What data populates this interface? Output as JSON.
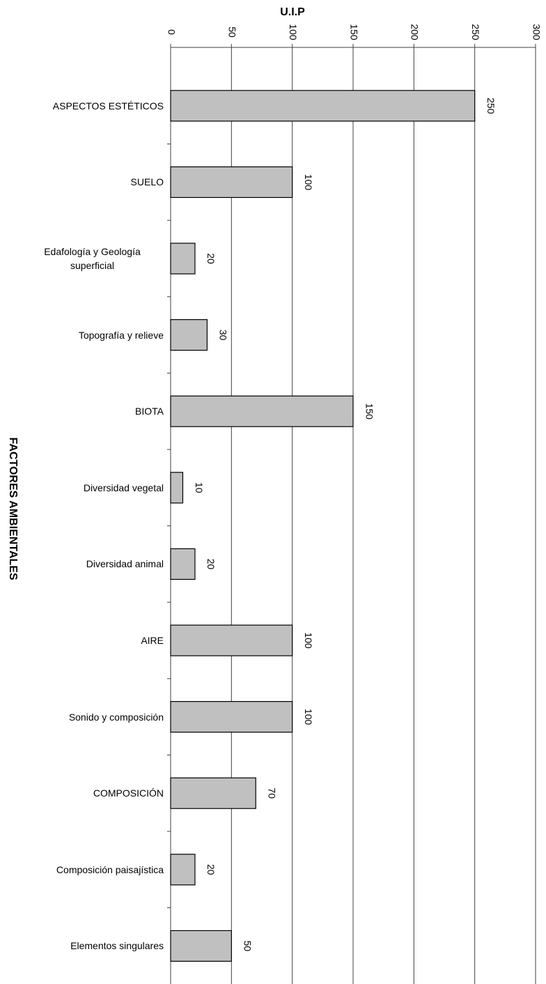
{
  "chart_data": {
    "type": "hbar",
    "title": "U.I.P",
    "y_label": "FACTORES AMBIENTALES",
    "categories": [
      "ASPECTOS ESTÉTICOS",
      "SUELO",
      "Edafología y Geología superficial",
      "Topografía y relieve",
      "BIOTA",
      "Diversidad vegetal",
      "Diversidad animal",
      "AIRE",
      "Sonido y composición",
      "COMPOSICIÓN",
      "Composición paisajística",
      "Elementos singulares"
    ],
    "values": [
      250,
      100,
      20,
      30,
      150,
      10,
      20,
      100,
      100,
      70,
      20,
      50
    ],
    "color": "#c0c0c0",
    "xlim": [
      0,
      300
    ],
    "xticks": [
      0,
      50,
      100,
      150,
      200,
      250,
      300
    ],
    "grid": true
  }
}
